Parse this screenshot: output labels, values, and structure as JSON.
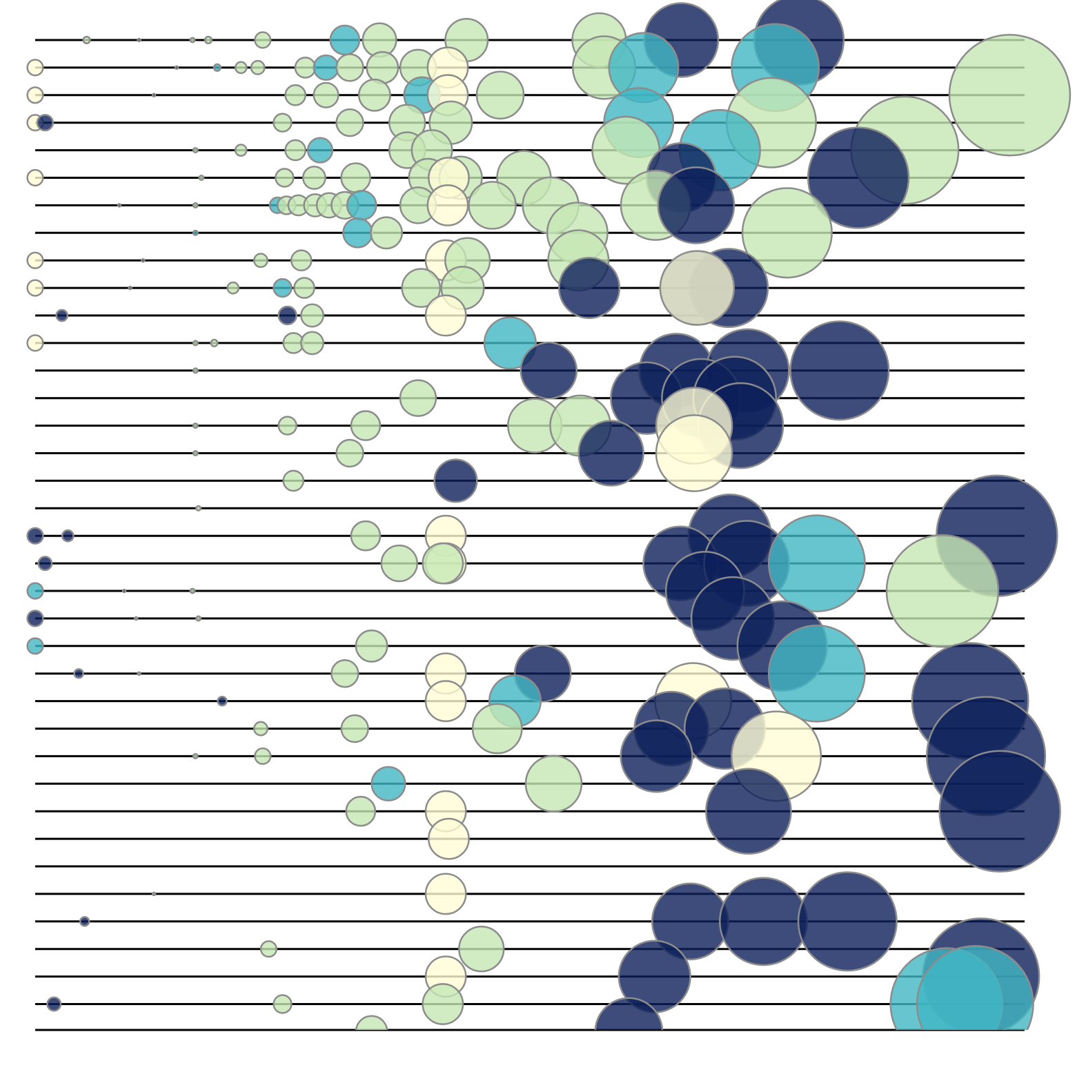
{
  "chart_data": {
    "type": "scatter",
    "encoding": "bubble-strip",
    "title": "",
    "xlabel": "",
    "ylabel": "",
    "xlim": [
      0,
      1000
    ],
    "grid": false,
    "legend": "none",
    "rows": 37,
    "palette": {
      "cream": "#fffcd6",
      "mint": "#c5e7b4",
      "teal": "#41b6c4",
      "navy": "#0c1f5a"
    },
    "fill_opacity": 0.8,
    "points": [
      {
        "row": 0,
        "x": 52,
        "r": 3,
        "c": "mint"
      },
      {
        "row": 0,
        "x": 105,
        "r": 1,
        "c": "navy"
      },
      {
        "row": 0,
        "x": 159,
        "r": 2,
        "c": "mint"
      },
      {
        "row": 0,
        "x": 175,
        "r": 3,
        "c": "mint"
      },
      {
        "row": 0,
        "x": 230,
        "r": 7,
        "c": "mint"
      },
      {
        "row": 0,
        "x": 313,
        "r": 13,
        "c": "teal"
      },
      {
        "row": 0,
        "x": 348,
        "r": 15,
        "c": "mint"
      },
      {
        "row": 0,
        "x": 436,
        "r": 19,
        "c": "mint"
      },
      {
        "row": 0,
        "x": 570,
        "r": 24,
        "c": "mint"
      },
      {
        "row": 0,
        "x": 653,
        "r": 33,
        "c": "navy"
      },
      {
        "row": 0,
        "x": 772,
        "r": 40,
        "c": "navy"
      },
      {
        "row": 1,
        "x": 0,
        "r": 7,
        "c": "cream"
      },
      {
        "row": 1,
        "x": 143,
        "r": 1,
        "c": "navy"
      },
      {
        "row": 1,
        "x": 184,
        "r": 3,
        "c": "teal"
      },
      {
        "row": 1,
        "x": 208,
        "r": 5,
        "c": "mint"
      },
      {
        "row": 1,
        "x": 225,
        "r": 6,
        "c": "mint"
      },
      {
        "row": 1,
        "x": 273,
        "r": 9,
        "c": "mint"
      },
      {
        "row": 1,
        "x": 294,
        "r": 11,
        "c": "teal"
      },
      {
        "row": 1,
        "x": 318,
        "r": 12,
        "c": "mint"
      },
      {
        "row": 1,
        "x": 351,
        "r": 14,
        "c": "mint"
      },
      {
        "row": 1,
        "x": 387,
        "r": 16,
        "c": "mint"
      },
      {
        "row": 1,
        "x": 417,
        "r": 18,
        "c": "cream"
      },
      {
        "row": 1,
        "x": 575,
        "r": 28,
        "c": "mint"
      },
      {
        "row": 1,
        "x": 615,
        "r": 31,
        "c": "teal"
      },
      {
        "row": 1,
        "x": 748,
        "r": 39,
        "c": "teal"
      },
      {
        "row": 2,
        "x": 0,
        "r": 7,
        "c": "cream"
      },
      {
        "row": 2,
        "x": 120,
        "r": 0.5,
        "c": "navy"
      },
      {
        "row": 2,
        "x": 263,
        "r": 9,
        "c": "mint"
      },
      {
        "row": 2,
        "x": 294,
        "r": 11,
        "c": "mint"
      },
      {
        "row": 2,
        "x": 343,
        "r": 14,
        "c": "mint"
      },
      {
        "row": 2,
        "x": 391,
        "r": 16,
        "c": "teal"
      },
      {
        "row": 2,
        "x": 417,
        "r": 18,
        "c": "cream"
      },
      {
        "row": 2,
        "x": 470,
        "r": 21,
        "c": "mint"
      },
      {
        "row": 2,
        "x": 985,
        "r": 54,
        "c": "mint"
      },
      {
        "row": 3,
        "x": 0,
        "r": 7,
        "c": "cream"
      },
      {
        "row": 3,
        "x": 10,
        "r": 7,
        "c": "navy"
      },
      {
        "row": 3,
        "x": 250,
        "r": 8,
        "c": "mint"
      },
      {
        "row": 3,
        "x": 318,
        "r": 12,
        "c": "mint"
      },
      {
        "row": 3,
        "x": 376,
        "r": 16,
        "c": "mint"
      },
      {
        "row": 3,
        "x": 420,
        "r": 19,
        "c": "mint"
      },
      {
        "row": 3,
        "x": 610,
        "r": 31,
        "c": "teal"
      },
      {
        "row": 3,
        "x": 744,
        "r": 40,
        "c": "mint"
      },
      {
        "row": 4,
        "x": 162,
        "r": 2,
        "c": "mint"
      },
      {
        "row": 4,
        "x": 208,
        "r": 5,
        "c": "mint"
      },
      {
        "row": 4,
        "x": 263,
        "r": 9,
        "c": "mint"
      },
      {
        "row": 4,
        "x": 288,
        "r": 11,
        "c": "teal"
      },
      {
        "row": 4,
        "x": 376,
        "r": 16,
        "c": "mint"
      },
      {
        "row": 4,
        "x": 401,
        "r": 18,
        "c": "mint"
      },
      {
        "row": 4,
        "x": 597,
        "r": 30,
        "c": "mint"
      },
      {
        "row": 4,
        "x": 692,
        "r": 36,
        "c": "teal"
      },
      {
        "row": 4,
        "x": 879,
        "r": 48,
        "c": "mint"
      },
      {
        "row": 5,
        "x": 0,
        "r": 7,
        "c": "cream"
      },
      {
        "row": 5,
        "x": 168,
        "r": 2,
        "c": "mint"
      },
      {
        "row": 5,
        "x": 252,
        "r": 8,
        "c": "mint"
      },
      {
        "row": 5,
        "x": 282,
        "r": 10,
        "c": "mint"
      },
      {
        "row": 5,
        "x": 324,
        "r": 13,
        "c": "mint"
      },
      {
        "row": 5,
        "x": 397,
        "r": 17,
        "c": "mint"
      },
      {
        "row": 5,
        "x": 430,
        "r": 19,
        "c": "mint"
      },
      {
        "row": 5,
        "x": 418,
        "r": 18,
        "c": "cream"
      },
      {
        "row": 5,
        "x": 494,
        "r": 24,
        "c": "mint"
      },
      {
        "row": 5,
        "x": 653,
        "r": 31,
        "c": "navy"
      },
      {
        "row": 5,
        "x": 832,
        "r": 45,
        "c": "navy"
      },
      {
        "row": 6,
        "x": 85,
        "r": 1,
        "c": "navy"
      },
      {
        "row": 6,
        "x": 162,
        "r": 2,
        "c": "mint"
      },
      {
        "row": 6,
        "x": 245,
        "r": 7,
        "c": "teal"
      },
      {
        "row": 6,
        "x": 254,
        "r": 8,
        "c": "mint"
      },
      {
        "row": 6,
        "x": 266,
        "r": 9,
        "c": "mint"
      },
      {
        "row": 6,
        "x": 283,
        "r": 10,
        "c": "mint"
      },
      {
        "row": 6,
        "x": 297,
        "r": 11,
        "c": "mint"
      },
      {
        "row": 6,
        "x": 313,
        "r": 12,
        "c": "mint"
      },
      {
        "row": 6,
        "x": 330,
        "r": 13,
        "c": "teal"
      },
      {
        "row": 6,
        "x": 387,
        "r": 16,
        "c": "mint"
      },
      {
        "row": 6,
        "x": 417,
        "r": 18,
        "c": "cream"
      },
      {
        "row": 6,
        "x": 462,
        "r": 21,
        "c": "mint"
      },
      {
        "row": 6,
        "x": 521,
        "r": 25,
        "c": "mint"
      },
      {
        "row": 6,
        "x": 627,
        "r": 31,
        "c": "mint"
      },
      {
        "row": 6,
        "x": 668,
        "r": 34,
        "c": "navy"
      },
      {
        "row": 7,
        "x": 162,
        "r": 2,
        "c": "teal"
      },
      {
        "row": 7,
        "x": 326,
        "r": 13,
        "c": "teal"
      },
      {
        "row": 7,
        "x": 355,
        "r": 14,
        "c": "mint"
      },
      {
        "row": 7,
        "x": 548,
        "r": 27,
        "c": "mint"
      },
      {
        "row": 7,
        "x": 760,
        "r": 40,
        "c": "mint"
      },
      {
        "row": 8,
        "x": 0,
        "r": 7,
        "c": "cream"
      },
      {
        "row": 8,
        "x": 109,
        "r": 0.5,
        "c": "navy"
      },
      {
        "row": 8,
        "x": 228,
        "r": 6,
        "c": "mint"
      },
      {
        "row": 8,
        "x": 269,
        "r": 9,
        "c": "mint"
      },
      {
        "row": 8,
        "x": 415,
        "r": 18,
        "c": "cream"
      },
      {
        "row": 8,
        "x": 437,
        "r": 20,
        "c": "mint"
      },
      {
        "row": 8,
        "x": 549,
        "r": 27,
        "c": "mint"
      },
      {
        "row": 9,
        "x": 0,
        "r": 7,
        "c": "cream"
      },
      {
        "row": 9,
        "x": 96,
        "r": 1,
        "c": "navy"
      },
      {
        "row": 9,
        "x": 200,
        "r": 5,
        "c": "mint"
      },
      {
        "row": 9,
        "x": 250,
        "r": 8,
        "c": "teal"
      },
      {
        "row": 9,
        "x": 272,
        "r": 9,
        "c": "mint"
      },
      {
        "row": 9,
        "x": 390,
        "r": 17,
        "c": "mint"
      },
      {
        "row": 9,
        "x": 432,
        "r": 19,
        "c": "mint"
      },
      {
        "row": 9,
        "x": 560,
        "r": 27,
        "c": "navy"
      },
      {
        "row": 9,
        "x": 701,
        "r": 35,
        "c": "navy"
      },
      {
        "row": 9,
        "x": 669,
        "r": 33,
        "c": "navy"
      },
      {
        "row": 9,
        "x": 669,
        "r": 33,
        "c": "cream"
      },
      {
        "row": 10,
        "x": 27,
        "r": 5,
        "c": "navy"
      },
      {
        "row": 10,
        "x": 255,
        "r": 8,
        "c": "navy"
      },
      {
        "row": 10,
        "x": 280,
        "r": 10,
        "c": "mint"
      },
      {
        "row": 10,
        "x": 415,
        "r": 18,
        "c": "cream"
      },
      {
        "row": 11,
        "x": 0,
        "r": 7,
        "c": "cream"
      },
      {
        "row": 11,
        "x": 162,
        "r": 2,
        "c": "mint"
      },
      {
        "row": 11,
        "x": 181,
        "r": 3,
        "c": "mint"
      },
      {
        "row": 11,
        "x": 261,
        "r": 9,
        "c": "mint"
      },
      {
        "row": 11,
        "x": 280,
        "r": 10,
        "c": "mint"
      },
      {
        "row": 11,
        "x": 480,
        "r": 23,
        "c": "teal"
      },
      {
        "row": 12,
        "x": 162,
        "r": 2,
        "c": "mint"
      },
      {
        "row": 12,
        "x": 519,
        "r": 25,
        "c": "navy"
      },
      {
        "row": 12,
        "x": 648,
        "r": 33,
        "c": "navy"
      },
      {
        "row": 12,
        "x": 720,
        "r": 37,
        "c": "navy"
      },
      {
        "row": 12,
        "x": 813,
        "r": 44,
        "c": "navy"
      },
      {
        "row": 13,
        "x": 387,
        "r": 16,
        "c": "mint"
      },
      {
        "row": 13,
        "x": 618,
        "r": 32,
        "c": "navy"
      },
      {
        "row": 13,
        "x": 673,
        "r": 35,
        "c": "navy"
      },
      {
        "row": 13,
        "x": 707,
        "r": 37,
        "c": "navy"
      },
      {
        "row": 14,
        "x": 162,
        "r": 2,
        "c": "mint"
      },
      {
        "row": 14,
        "x": 255,
        "r": 8,
        "c": "mint"
      },
      {
        "row": 14,
        "x": 334,
        "r": 13,
        "c": "mint"
      },
      {
        "row": 14,
        "x": 505,
        "r": 24,
        "c": "mint"
      },
      {
        "row": 14,
        "x": 551,
        "r": 27,
        "c": "mint"
      },
      {
        "row": 14,
        "x": 713,
        "r": 38,
        "c": "navy"
      },
      {
        "row": 14,
        "x": 666,
        "r": 34,
        "c": "cream"
      },
      {
        "row": 15,
        "x": 162,
        "r": 2,
        "c": "mint"
      },
      {
        "row": 15,
        "x": 318,
        "r": 12,
        "c": "mint"
      },
      {
        "row": 15,
        "x": 582,
        "r": 29,
        "c": "navy"
      },
      {
        "row": 15,
        "x": 666,
        "r": 34,
        "c": "cream"
      },
      {
        "row": 16,
        "x": 261,
        "r": 9,
        "c": "mint"
      },
      {
        "row": 16,
        "x": 425,
        "r": 19,
        "c": "navy"
      },
      {
        "row": 17,
        "x": 165,
        "r": 2,
        "c": "cream"
      },
      {
        "row": 18,
        "x": 0,
        "r": 7,
        "c": "navy"
      },
      {
        "row": 18,
        "x": 33,
        "r": 5,
        "c": "navy"
      },
      {
        "row": 18,
        "x": 334,
        "r": 13,
        "c": "mint"
      },
      {
        "row": 18,
        "x": 415,
        "r": 18,
        "c": "cream"
      },
      {
        "row": 18,
        "x": 702,
        "r": 37,
        "c": "navy"
      },
      {
        "row": 18,
        "x": 972,
        "r": 54,
        "c": "navy"
      },
      {
        "row": 19,
        "x": 10,
        "r": 6,
        "c": "navy"
      },
      {
        "row": 19,
        "x": 368,
        "r": 16,
        "c": "mint"
      },
      {
        "row": 19,
        "x": 415,
        "r": 18,
        "c": "cream"
      },
      {
        "row": 19,
        "x": 412,
        "r": 18,
        "c": "mint"
      },
      {
        "row": 19,
        "x": 652,
        "r": 33,
        "c": "navy"
      },
      {
        "row": 19,
        "x": 719,
        "r": 38,
        "c": "navy"
      },
      {
        "row": 19,
        "x": 790,
        "r": 43,
        "c": "teal"
      },
      {
        "row": 20,
        "x": 0,
        "r": 7,
        "c": "teal"
      },
      {
        "row": 20,
        "x": 90,
        "r": 1,
        "c": "navy"
      },
      {
        "row": 20,
        "x": 159,
        "r": 2,
        "c": "mint"
      },
      {
        "row": 20,
        "x": 677,
        "r": 35,
        "c": "navy"
      },
      {
        "row": 20,
        "x": 917,
        "r": 50,
        "c": "mint"
      },
      {
        "row": 21,
        "x": 0,
        "r": 7,
        "c": "navy"
      },
      {
        "row": 21,
        "x": 102,
        "r": 0.5,
        "c": "mint"
      },
      {
        "row": 21,
        "x": 165,
        "r": 2,
        "c": "mint"
      },
      {
        "row": 21,
        "x": 705,
        "r": 37,
        "c": "navy"
      },
      {
        "row": 22,
        "x": 0,
        "r": 7,
        "c": "teal"
      },
      {
        "row": 22,
        "x": 340,
        "r": 14,
        "c": "mint"
      },
      {
        "row": 22,
        "x": 755,
        "r": 40,
        "c": "navy"
      },
      {
        "row": 23,
        "x": 44,
        "r": 4,
        "c": "navy"
      },
      {
        "row": 23,
        "x": 105,
        "r": 0.5,
        "c": "mint"
      },
      {
        "row": 23,
        "x": 313,
        "r": 12,
        "c": "mint"
      },
      {
        "row": 23,
        "x": 415,
        "r": 18,
        "c": "cream"
      },
      {
        "row": 23,
        "x": 513,
        "r": 25,
        "c": "navy"
      },
      {
        "row": 23,
        "x": 790,
        "r": 43,
        "c": "teal"
      },
      {
        "row": 24,
        "x": 189,
        "r": 4,
        "c": "navy"
      },
      {
        "row": 24,
        "x": 415,
        "r": 18,
        "c": "cream"
      },
      {
        "row": 24,
        "x": 485,
        "r": 23,
        "c": "teal"
      },
      {
        "row": 24,
        "x": 665,
        "r": 34,
        "c": "cream"
      },
      {
        "row": 24,
        "x": 945,
        "r": 52,
        "c": "navy"
      },
      {
        "row": 25,
        "x": 228,
        "r": 6,
        "c": "mint"
      },
      {
        "row": 25,
        "x": 323,
        "r": 12,
        "c": "mint"
      },
      {
        "row": 25,
        "x": 467,
        "r": 22,
        "c": "mint"
      },
      {
        "row": 25,
        "x": 643,
        "r": 33,
        "c": "navy"
      },
      {
        "row": 25,
        "x": 697,
        "r": 36,
        "c": "navy"
      },
      {
        "row": 26,
        "x": 162,
        "r": 2,
        "c": "mint"
      },
      {
        "row": 26,
        "x": 230,
        "r": 7,
        "c": "mint"
      },
      {
        "row": 26,
        "x": 628,
        "r": 32,
        "c": "navy"
      },
      {
        "row": 26,
        "x": 749,
        "r": 40,
        "c": "cream"
      },
      {
        "row": 26,
        "x": 961,
        "r": 53,
        "c": "navy"
      },
      {
        "row": 27,
        "x": 357,
        "r": 15,
        "c": "teal"
      },
      {
        "row": 27,
        "x": 524,
        "r": 25,
        "c": "mint"
      },
      {
        "row": 28,
        "x": 329,
        "r": 13,
        "c": "mint"
      },
      {
        "row": 28,
        "x": 415,
        "r": 18,
        "c": "cream"
      },
      {
        "row": 28,
        "x": 721,
        "r": 38,
        "c": "navy"
      },
      {
        "row": 28,
        "x": 975,
        "r": 54,
        "c": "navy"
      },
      {
        "row": 29,
        "x": 418,
        "r": 18,
        "c": "cream"
      },
      {
        "row": 31,
        "x": 120,
        "r": 0.5,
        "c": "mint"
      },
      {
        "row": 31,
        "x": 415,
        "r": 18,
        "c": "cream"
      },
      {
        "row": 32,
        "x": 50,
        "r": 4,
        "c": "navy"
      },
      {
        "row": 32,
        "x": 662,
        "r": 34,
        "c": "navy"
      },
      {
        "row": 32,
        "x": 736,
        "r": 39,
        "c": "navy"
      },
      {
        "row": 32,
        "x": 821,
        "r": 44,
        "c": "navy"
      },
      {
        "row": 33,
        "x": 236,
        "r": 7,
        "c": "mint"
      },
      {
        "row": 33,
        "x": 451,
        "r": 20,
        "c": "mint"
      },
      {
        "row": 34,
        "x": 415,
        "r": 18,
        "c": "cream"
      },
      {
        "row": 34,
        "x": 626,
        "r": 32,
        "c": "navy"
      },
      {
        "row": 34,
        "x": 956,
        "r": 52,
        "c": "navy"
      },
      {
        "row": 35,
        "x": 19,
        "r": 6,
        "c": "navy"
      },
      {
        "row": 35,
        "x": 250,
        "r": 8,
        "c": "mint"
      },
      {
        "row": 35,
        "x": 412,
        "r": 18,
        "c": "mint"
      },
      {
        "row": 35,
        "x": 921,
        "r": 50,
        "c": "teal"
      },
      {
        "row": 35,
        "x": 950,
        "r": 52,
        "c": "teal"
      },
      {
        "row": 36,
        "x": 340,
        "r": 14,
        "c": "mint"
      },
      {
        "row": 36,
        "x": 600,
        "r": 30,
        "c": "navy"
      }
    ]
  }
}
